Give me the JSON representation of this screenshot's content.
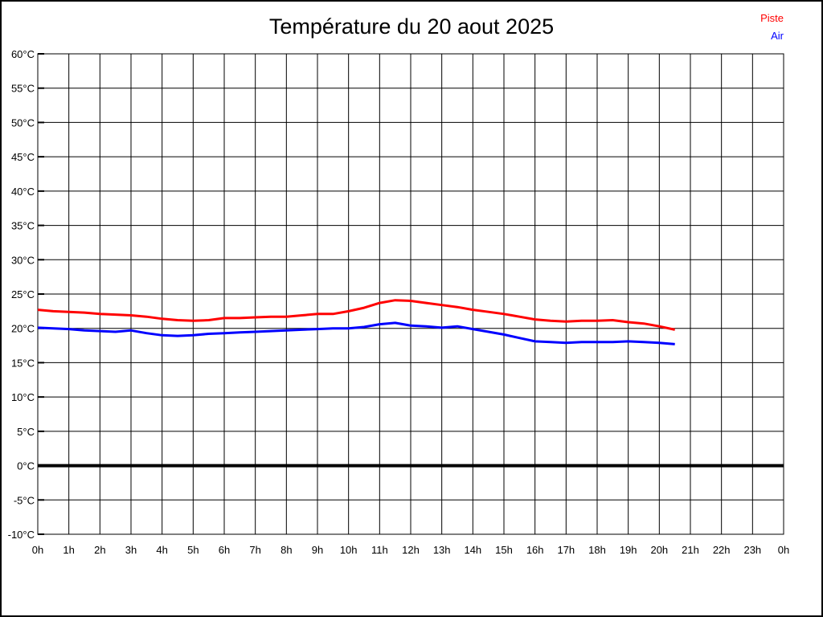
{
  "page": {
    "background": "#ffffff",
    "border_color": "#000000"
  },
  "header": {
    "title": "Température du 20 aout 2025"
  },
  "legend": {
    "position": "top-right",
    "items": [
      {
        "label": "Piste",
        "color": "#ff0000"
      },
      {
        "label": "Air",
        "color": "#0000ff"
      }
    ]
  },
  "chart_data": {
    "type": "line",
    "title": "Température du 20 aout 2025",
    "xlabel": "",
    "ylabel": "",
    "grid": true,
    "background": "#ffffff",
    "grid_color": "#000000",
    "x_range": [
      0,
      24
    ],
    "x_tick_labels": [
      "0h",
      "1h",
      "2h",
      "3h",
      "4h",
      "5h",
      "6h",
      "7h",
      "8h",
      "9h",
      "10h",
      "11h",
      "12h",
      "13h",
      "14h",
      "15h",
      "16h",
      "17h",
      "18h",
      "19h",
      "20h",
      "21h",
      "22h",
      "23h",
      "0h"
    ],
    "ylim": [
      -10,
      60
    ],
    "y_tick_step": 5,
    "y_tick_suffix": "°C",
    "zero_line": {
      "value": 0,
      "color": "#000000",
      "width": 4
    },
    "x": [
      0,
      0.5,
      1,
      1.5,
      2,
      2.5,
      3,
      3.5,
      4,
      4.5,
      5,
      5.5,
      6,
      6.5,
      7,
      7.5,
      8,
      8.5,
      9,
      9.5,
      10,
      10.5,
      11,
      11.5,
      12,
      12.5,
      13,
      13.5,
      14,
      14.5,
      15,
      15.5,
      16,
      16.5,
      17,
      17.5,
      18,
      18.5,
      19,
      19.5,
      20,
      20.5
    ],
    "series": [
      {
        "name": "Piste",
        "color": "#ff0000",
        "values": [
          22.7,
          22.5,
          22.4,
          22.3,
          22.1,
          22.0,
          21.9,
          21.7,
          21.4,
          21.2,
          21.1,
          21.2,
          21.5,
          21.5,
          21.6,
          21.7,
          21.7,
          21.9,
          22.1,
          22.1,
          22.5,
          23.0,
          23.7,
          24.1,
          24.0,
          23.7,
          23.4,
          23.1,
          22.7,
          22.4,
          22.1,
          21.7,
          21.3,
          21.1,
          21.0,
          21.1,
          21.1,
          21.2,
          20.9,
          20.7,
          20.3,
          19.8
        ]
      },
      {
        "name": "Air",
        "color": "#0000ff",
        "values": [
          20.1,
          20.0,
          19.9,
          19.7,
          19.6,
          19.5,
          19.7,
          19.3,
          19.0,
          18.9,
          19.0,
          19.2,
          19.3,
          19.4,
          19.5,
          19.6,
          19.7,
          19.8,
          19.9,
          20.0,
          20.0,
          20.2,
          20.6,
          20.8,
          20.4,
          20.3,
          20.1,
          20.3,
          19.9,
          19.5,
          19.1,
          18.6,
          18.1,
          18.0,
          17.9,
          18.0,
          18.0,
          18.0,
          18.1,
          18.0,
          17.9,
          17.7
        ]
      }
    ]
  }
}
